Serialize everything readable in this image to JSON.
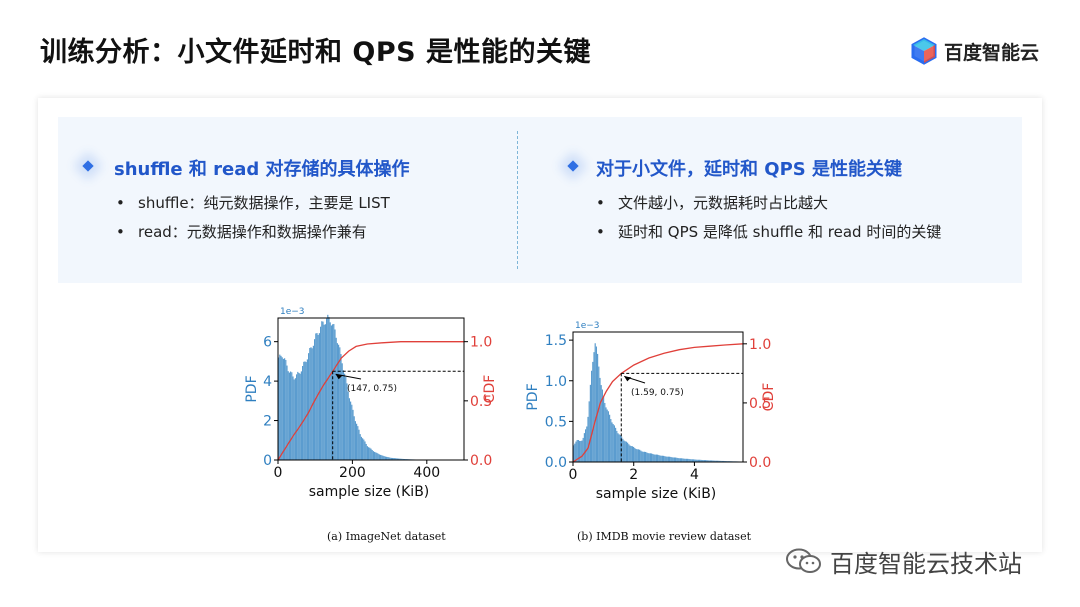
{
  "title": "训练分析：小文件延时和 QPS 是性能的关键",
  "logo": {
    "text": "百度智能云",
    "icon": "cube-icon"
  },
  "left": {
    "heading": "shuffle 和 read 对存储的具体操作",
    "bullets": [
      "shuffle：纯元数据操作，主要是 LIST",
      "read：元数据操作和数据操作兼有"
    ]
  },
  "right": {
    "heading": "对于小文件，延时和 QPS 是性能关键",
    "bullets": [
      "文件越小，元数据耗时占比越大",
      "延时和 QPS 是降低 shuffle 和 read 时间的关键"
    ]
  },
  "chart_data": [
    {
      "type": "area",
      "caption": "(a) ImageNet dataset",
      "xlabel": "sample size (KiB)",
      "ylabel": "PDF",
      "y2label": "CDF",
      "offset_label": "1e−3",
      "xlim": [
        0,
        500
      ],
      "ylim": [
        0,
        7.2
      ],
      "y2lim": [
        0,
        1.2
      ],
      "xticks": [
        "0",
        "200",
        "400"
      ],
      "yticks": [
        "0",
        "2",
        "4",
        "6"
      ],
      "y2ticks": [
        "0.0",
        "0.5",
        "1.0"
      ],
      "annotation": "(147, 0.75)",
      "marker": {
        "x": 147,
        "cdf": 0.75
      },
      "pdf": {
        "x": [
          0,
          10,
          25,
          40,
          55,
          70,
          85,
          100,
          115,
          130,
          140,
          147,
          160,
          175,
          190,
          205,
          220,
          240,
          260,
          280,
          300,
          330,
          360,
          400,
          450,
          500
        ],
        "y": [
          5.2,
          5.5,
          4.8,
          4.3,
          4.5,
          5.0,
          5.6,
          6.2,
          6.7,
          7.0,
          6.9,
          6.6,
          5.8,
          4.5,
          3.2,
          2.1,
          1.3,
          0.7,
          0.4,
          0.22,
          0.12,
          0.06,
          0.03,
          0.01,
          0.003,
          0.0
        ]
      },
      "cdf": {
        "x": [
          0,
          20,
          40,
          60,
          80,
          100,
          120,
          147,
          170,
          190,
          210,
          240,
          280,
          330,
          400,
          500
        ],
        "y": [
          0.0,
          0.1,
          0.2,
          0.29,
          0.39,
          0.51,
          0.62,
          0.75,
          0.86,
          0.92,
          0.96,
          0.98,
          0.99,
          1.0,
          1.0,
          1.0
        ]
      }
    },
    {
      "type": "area",
      "caption": "(b) IMDB movie review dataset",
      "xlabel": "sample size (KiB)",
      "ylabel": "PDF",
      "y2label": "CDF",
      "offset_label": "1e−3",
      "xlim": [
        0,
        5.6
      ],
      "ylim": [
        0,
        1.6
      ],
      "y2lim": [
        0,
        1.1
      ],
      "xticks": [
        "0",
        "2",
        "4"
      ],
      "yticks": [
        "0.0",
        "0.5",
        "1.0",
        "1.5"
      ],
      "y2ticks": [
        "0.0",
        "0.5",
        "1.0"
      ],
      "annotation": "(1.59, 0.75)",
      "marker": {
        "x": 1.59,
        "cdf": 0.75
      },
      "pdf": {
        "x": [
          0,
          0.1,
          0.2,
          0.3,
          0.45,
          0.6,
          0.7,
          0.8,
          0.9,
          1.0,
          1.2,
          1.4,
          1.6,
          1.8,
          2.0,
          2.3,
          2.6,
          3.0,
          3.5,
          4.0,
          4.5,
          5.0,
          5.6
        ],
        "y": [
          0.2,
          0.27,
          0.25,
          0.27,
          0.45,
          1.1,
          1.45,
          1.25,
          0.95,
          0.75,
          0.55,
          0.4,
          0.3,
          0.23,
          0.18,
          0.13,
          0.1,
          0.07,
          0.045,
          0.03,
          0.02,
          0.012,
          0.005
        ]
      },
      "cdf": {
        "x": [
          0,
          0.3,
          0.5,
          0.7,
          0.9,
          1.1,
          1.3,
          1.59,
          2.0,
          2.5,
          3.0,
          3.5,
          4.0,
          4.5,
          5.0,
          5.6
        ],
        "y": [
          0.0,
          0.05,
          0.12,
          0.32,
          0.5,
          0.6,
          0.68,
          0.75,
          0.82,
          0.88,
          0.92,
          0.95,
          0.97,
          0.98,
          0.99,
          1.0
        ]
      }
    }
  ],
  "watermark": {
    "text": "百度智能云技术站",
    "icon": "wechat-icon"
  }
}
